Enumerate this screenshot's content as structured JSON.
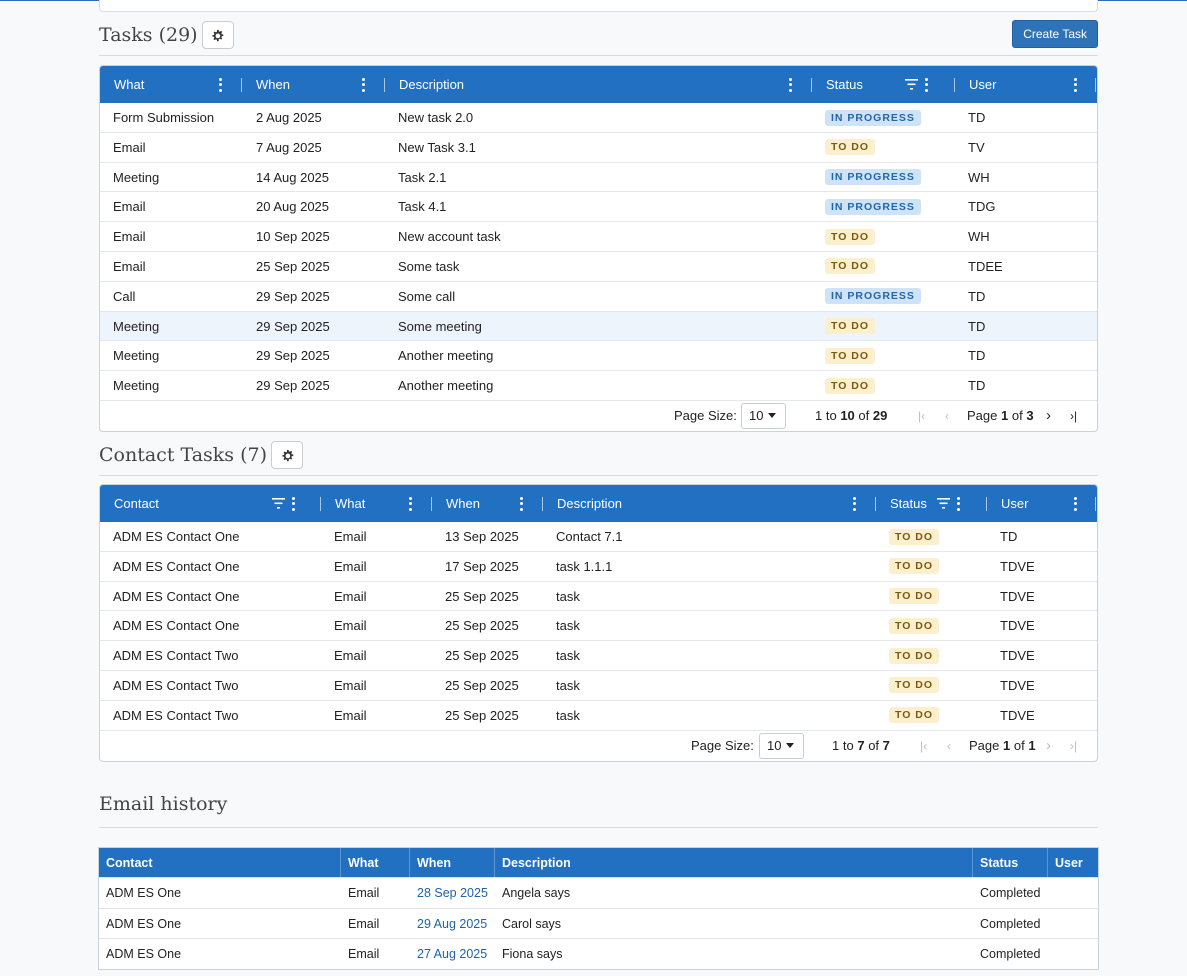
{
  "tasks": {
    "title": "Tasks (29)",
    "create_label": "Create Task",
    "columns": [
      "What",
      "When",
      "Description",
      "Status",
      "User"
    ],
    "rows": [
      {
        "what": "Form Submission",
        "when": "2 Aug 2025",
        "desc": "New task 2.0",
        "status": "IN PROGRESS",
        "user": "TD"
      },
      {
        "what": "Email",
        "when": "7 Aug 2025",
        "desc": "New Task 3.1",
        "status": "TO DO",
        "user": "TV"
      },
      {
        "what": "Meeting",
        "when": "14 Aug 2025",
        "desc": "Task 2.1",
        "status": "IN PROGRESS",
        "user": "WH"
      },
      {
        "what": "Email",
        "when": "20 Aug 2025",
        "desc": "Task 4.1",
        "status": "IN PROGRESS",
        "user": "TDG"
      },
      {
        "what": "Email",
        "when": "10 Sep 2025",
        "desc": "New account task",
        "status": "TO DO",
        "user": "WH"
      },
      {
        "what": "Email",
        "when": "25 Sep 2025",
        "desc": "Some task",
        "status": "TO DO",
        "user": "TDEE"
      },
      {
        "what": "Call",
        "when": "29 Sep 2025",
        "desc": "Some call",
        "status": "IN PROGRESS",
        "user": "TD"
      },
      {
        "what": "Meeting",
        "when": "29 Sep 2025",
        "desc": "Some meeting",
        "status": "TO DO",
        "user": "TD"
      },
      {
        "what": "Meeting",
        "when": "29 Sep 2025",
        "desc": "Another meeting",
        "status": "TO DO",
        "user": "TD"
      },
      {
        "what": "Meeting",
        "when": "29 Sep 2025",
        "desc": "Another meeting",
        "status": "TO DO",
        "user": "TD"
      }
    ],
    "pager": {
      "page_size_label": "Page Size:",
      "page_size": "10",
      "from": "1",
      "to_word": "to",
      "to": "10",
      "of_word": "of",
      "total": "29",
      "page_word": "Page",
      "page": "1",
      "pages": "3"
    }
  },
  "contact_tasks": {
    "title": "Contact Tasks (7)",
    "columns": [
      "Contact",
      "What",
      "When",
      "Description",
      "Status",
      "User"
    ],
    "rows": [
      {
        "contact": "ADM ES Contact One",
        "what": "Email",
        "when": "13 Sep 2025",
        "desc": "Contact 7.1",
        "status": "TO DO",
        "user": "TD"
      },
      {
        "contact": "ADM ES Contact One",
        "what": "Email",
        "when": "17 Sep 2025",
        "desc": "task 1.1.1",
        "status": "TO DO",
        "user": "TDVE"
      },
      {
        "contact": "ADM ES Contact One",
        "what": "Email",
        "when": "25 Sep 2025",
        "desc": "task",
        "status": "TO DO",
        "user": "TDVE"
      },
      {
        "contact": "ADM ES Contact One",
        "what": "Email",
        "when": "25 Sep 2025",
        "desc": "task",
        "status": "TO DO",
        "user": "TDVE"
      },
      {
        "contact": "ADM ES Contact Two",
        "what": "Email",
        "when": "25 Sep 2025",
        "desc": "task",
        "status": "TO DO",
        "user": "TDVE"
      },
      {
        "contact": "ADM ES Contact Two",
        "what": "Email",
        "when": "25 Sep 2025",
        "desc": "task",
        "status": "TO DO",
        "user": "TDVE"
      },
      {
        "contact": "ADM ES Contact Two",
        "what": "Email",
        "when": "25 Sep 2025",
        "desc": "task",
        "status": "TO DO",
        "user": "TDVE"
      }
    ],
    "pager": {
      "page_size_label": "Page Size:",
      "page_size": "10",
      "from": "1",
      "to_word": "to",
      "to": "7",
      "of_word": "of",
      "total": "7",
      "page_word": "Page",
      "page": "1",
      "pages": "1"
    }
  },
  "email_history": {
    "title": "Email history",
    "columns": [
      "Contact",
      "What",
      "When",
      "Description",
      "Status",
      "User"
    ],
    "rows": [
      {
        "contact": "ADM ES One",
        "what": "Email",
        "when": "28 Sep 2025",
        "desc": "Angela says",
        "status": "Completed",
        "user": ""
      },
      {
        "contact": "ADM ES One",
        "what": "Email",
        "when": "29 Aug 2025",
        "desc": "Carol says",
        "status": "Completed",
        "user": ""
      },
      {
        "contact": "ADM ES One",
        "what": "Email",
        "when": "27 Aug 2025",
        "desc": "Fiona says",
        "status": "Completed",
        "user": ""
      }
    ]
  },
  "colors": {
    "header_blue": "#2170c2",
    "in_progress_bg": "#cfe3f8",
    "todo_bg": "#fbefcd",
    "link": "#1f62a8"
  },
  "icons": {
    "settings": "gear-icon",
    "menu": "kebab-icon",
    "filter": "filter-icon",
    "pager_first": "first-page-icon",
    "pager_prev": "prev-page-icon",
    "pager_next": "next-page-icon",
    "pager_last": "last-page-icon"
  }
}
